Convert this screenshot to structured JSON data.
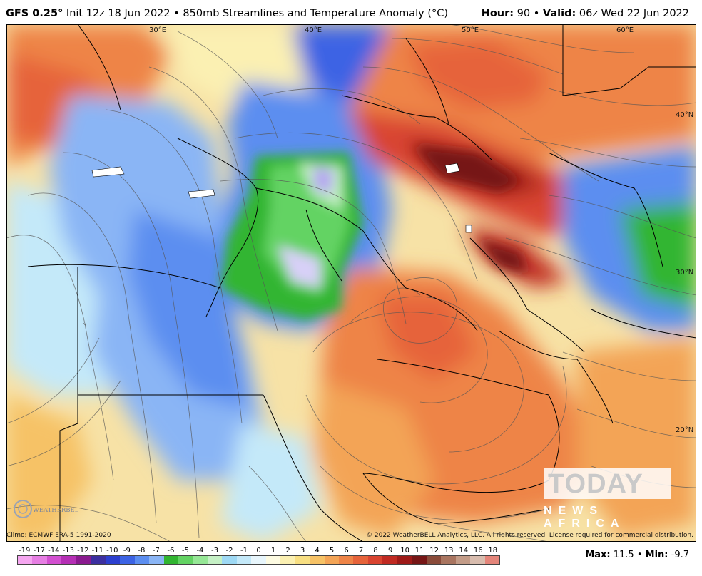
{
  "header": {
    "model": "GFS 0.25°",
    "init": " Init 12z 18 Jun 2022 • 850mb Streamlines and Temperature Anomaly (°C)",
    "hour_label": "Hour:",
    "hour_value": " 90 • ",
    "valid_label": "Valid:",
    "valid_value": " 06z Wed 22 Jun 2022"
  },
  "map": {
    "lon_labels": [
      "30°E",
      "40°E",
      "50°E",
      "60°E"
    ],
    "lat_labels": [
      "40°N",
      "30°N",
      "20°N"
    ]
  },
  "footer": {
    "climo": "Climo: ECMWF ERA-5 1991-2020",
    "copyright": "© 2022 WeatherBELL Analytics, LLC. All rights reserved. License required for commercial distribution.",
    "max_label": "Max:",
    "max_value": " 11.5 • ",
    "min_label": "Min:",
    "min_value": " -9.7"
  },
  "legend": {
    "labels": [
      "-19",
      "-17",
      "-14",
      "-13",
      "-12",
      "-11",
      "-10",
      "-9",
      "-8",
      "-7",
      "-6",
      "-5",
      "-4",
      "-3",
      "-2",
      "-1",
      "0",
      "1",
      "2",
      "3",
      "4",
      "5",
      "6",
      "7",
      "8",
      "9",
      "10",
      "11",
      "12",
      "13",
      "14",
      "16",
      "18"
    ],
    "colors": [
      "#f5a6f0",
      "#e67ee3",
      "#d24fd0",
      "#b52fb5",
      "#8a1a8f",
      "#3c2fa0",
      "#2c3fcf",
      "#3c63e4",
      "#5c8ef0",
      "#8ab5f5",
      "#31b531",
      "#63d363",
      "#96e796",
      "#c5f0c5",
      "#9ed9f4",
      "#c4e9f9",
      "#e8f6fc",
      "#fdfbe2",
      "#fbf0b2",
      "#f8df82",
      "#f6c266",
      "#f3a456",
      "#ee8447",
      "#e6633a",
      "#d94430",
      "#c02a22",
      "#9e1a18",
      "#761616",
      "#8a4b3a",
      "#a97560",
      "#c39c88",
      "#d8bcae",
      "#e4857a"
    ]
  },
  "logos": {
    "weatherbell": "WEATHERBELL",
    "today_word": "TODAY",
    "today_sub": "NEWS AFRICA"
  }
}
